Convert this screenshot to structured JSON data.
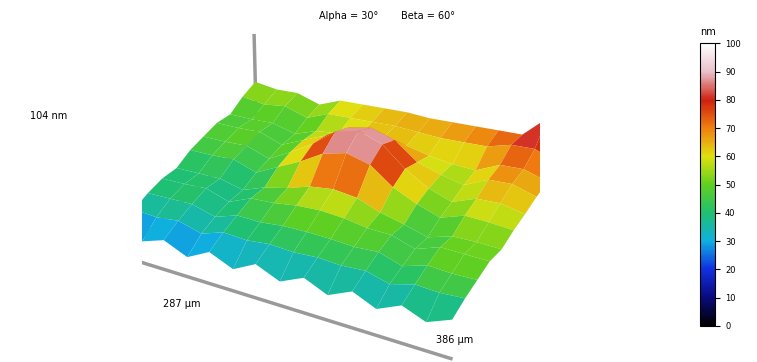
{
  "chart_data": {
    "type": "surface",
    "annotations": [
      "Alpha = 30°",
      "Beta = 60°"
    ],
    "xlabel": "386 µm",
    "ylabel": "287 µm",
    "zlabel": "104 nm",
    "xlim": [
      0,
      386
    ],
    "ylim": [
      0,
      287
    ],
    "zlim": [
      0,
      104
    ],
    "x": [
      0,
      28,
      55,
      83,
      110,
      138,
      165,
      193,
      221,
      248,
      276,
      303,
      331,
      358,
      386
    ],
    "y": [
      0,
      29,
      57,
      86,
      115,
      144,
      172,
      201,
      230,
      258,
      287
    ],
    "z": [
      [
        28,
        22,
        30,
        20,
        32,
        22,
        34,
        24,
        35,
        25,
        36,
        26,
        37,
        28,
        38
      ],
      [
        34,
        33,
        36,
        30,
        38,
        37,
        40,
        39,
        41,
        40,
        42,
        36,
        43,
        42,
        44
      ],
      [
        38,
        39,
        40,
        34,
        42,
        42,
        45,
        46,
        46,
        45,
        47,
        40,
        48,
        47,
        48
      ],
      [
        40,
        41,
        43,
        36,
        46,
        48,
        52,
        54,
        53,
        50,
        50,
        43,
        52,
        52,
        52
      ],
      [
        38,
        39,
        40,
        35,
        44,
        50,
        58,
        62,
        60,
        52,
        47,
        41,
        49,
        50,
        50
      ],
      [
        44,
        45,
        47,
        40,
        52,
        64,
        78,
        85,
        80,
        64,
        54,
        47,
        56,
        56,
        55
      ],
      [
        46,
        47,
        49,
        42,
        55,
        70,
        88,
        95,
        88,
        70,
        57,
        50,
        60,
        62,
        58
      ],
      [
        48,
        49,
        51,
        44,
        55,
        66,
        80,
        86,
        80,
        64,
        58,
        54,
        66,
        68,
        62
      ],
      [
        45,
        46,
        48,
        43,
        52,
        56,
        62,
        64,
        62,
        58,
        56,
        56,
        68,
        70,
        64
      ],
      [
        52,
        50,
        54,
        48,
        58,
        60,
        62,
        64,
        64,
        64,
        66,
        68,
        76,
        78,
        70
      ],
      [
        56,
        54,
        56,
        50,
        60,
        62,
        64,
        66,
        66,
        68,
        70,
        72,
        74,
        96,
        70
      ]
    ],
    "colorbar": {
      "label": "nm",
      "lim": [
        0,
        100
      ],
      "ticks": [
        0,
        10,
        20,
        30,
        40,
        50,
        60,
        70,
        80,
        90,
        100
      ]
    }
  }
}
